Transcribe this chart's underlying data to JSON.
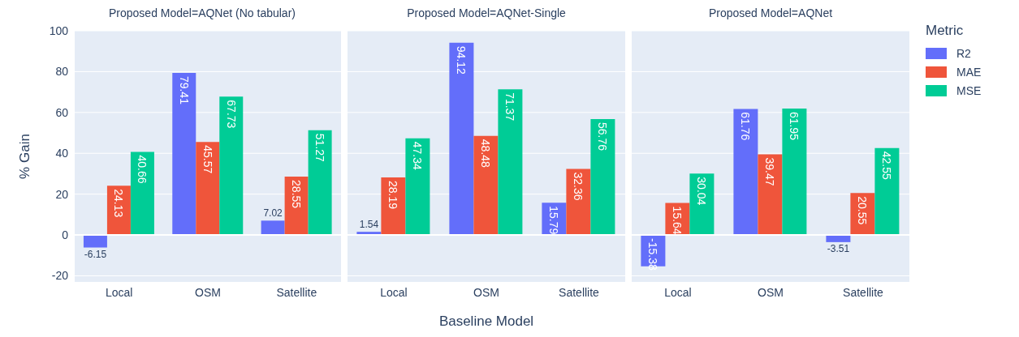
{
  "chart_data": [
    {
      "type": "bar",
      "title": "Proposed Model=AQNet (No tabular)",
      "ylabel": "% Gain",
      "categories": [
        "Local",
        "OSM",
        "Satellite"
      ],
      "series": [
        {
          "color": "#636efa",
          "values": [
            -6.15,
            79.41,
            7.02
          ]
        },
        {
          "color": "#ef553b",
          "values": [
            24.13,
            45.57,
            28.55
          ]
        },
        {
          "color": "#00cc96",
          "values": [
            40.66,
            67.73,
            51.27
          ]
        }
      ],
      "ylim": [
        -23,
        100
      ],
      "yticks": [
        -20,
        0,
        20,
        40,
        60,
        80,
        100
      ],
      "grid": "y",
      "data_labels": true,
      "legend": false
    },
    {
      "type": "bar",
      "title": "Proposed Model=AQNet-Single",
      "xlabel": "Baseline Model",
      "categories": [
        "Local",
        "OSM",
        "Satellite"
      ],
      "series": [
        {
          "color": "#636efa",
          "values": [
            1.54,
            94.12,
            15.79
          ]
        },
        {
          "color": "#ef553b",
          "values": [
            28.19,
            48.48,
            32.36
          ]
        },
        {
          "color": "#00cc96",
          "values": [
            47.34,
            71.37,
            56.76
          ]
        }
      ],
      "ylim": [
        -23,
        100
      ],
      "yticks": [
        -20,
        0,
        20,
        40,
        60,
        80,
        100
      ],
      "grid": "y",
      "data_labels": true,
      "tick_labels": "x",
      "legend": false
    },
    {
      "type": "bar",
      "title": "Proposed Model=AQNet",
      "legend_title": "Metric",
      "categories": [
        "Local",
        "OSM",
        "Satellite"
      ],
      "series": [
        {
          "name": "R2",
          "color": "#636efa",
          "values": [
            -15.38,
            61.76,
            -3.51
          ]
        },
        {
          "name": "MAE",
          "color": "#ef553b",
          "values": [
            15.64,
            39.47,
            20.55
          ]
        },
        {
          "name": "MSE",
          "color": "#00cc96",
          "values": [
            30.04,
            61.95,
            42.55
          ]
        }
      ],
      "ylim": [
        -23,
        100
      ],
      "yticks": [
        -20,
        0,
        20,
        40,
        60,
        80,
        100
      ],
      "grid": "y",
      "data_labels": true,
      "tick_labels": "x",
      "legend": "right"
    }
  ]
}
